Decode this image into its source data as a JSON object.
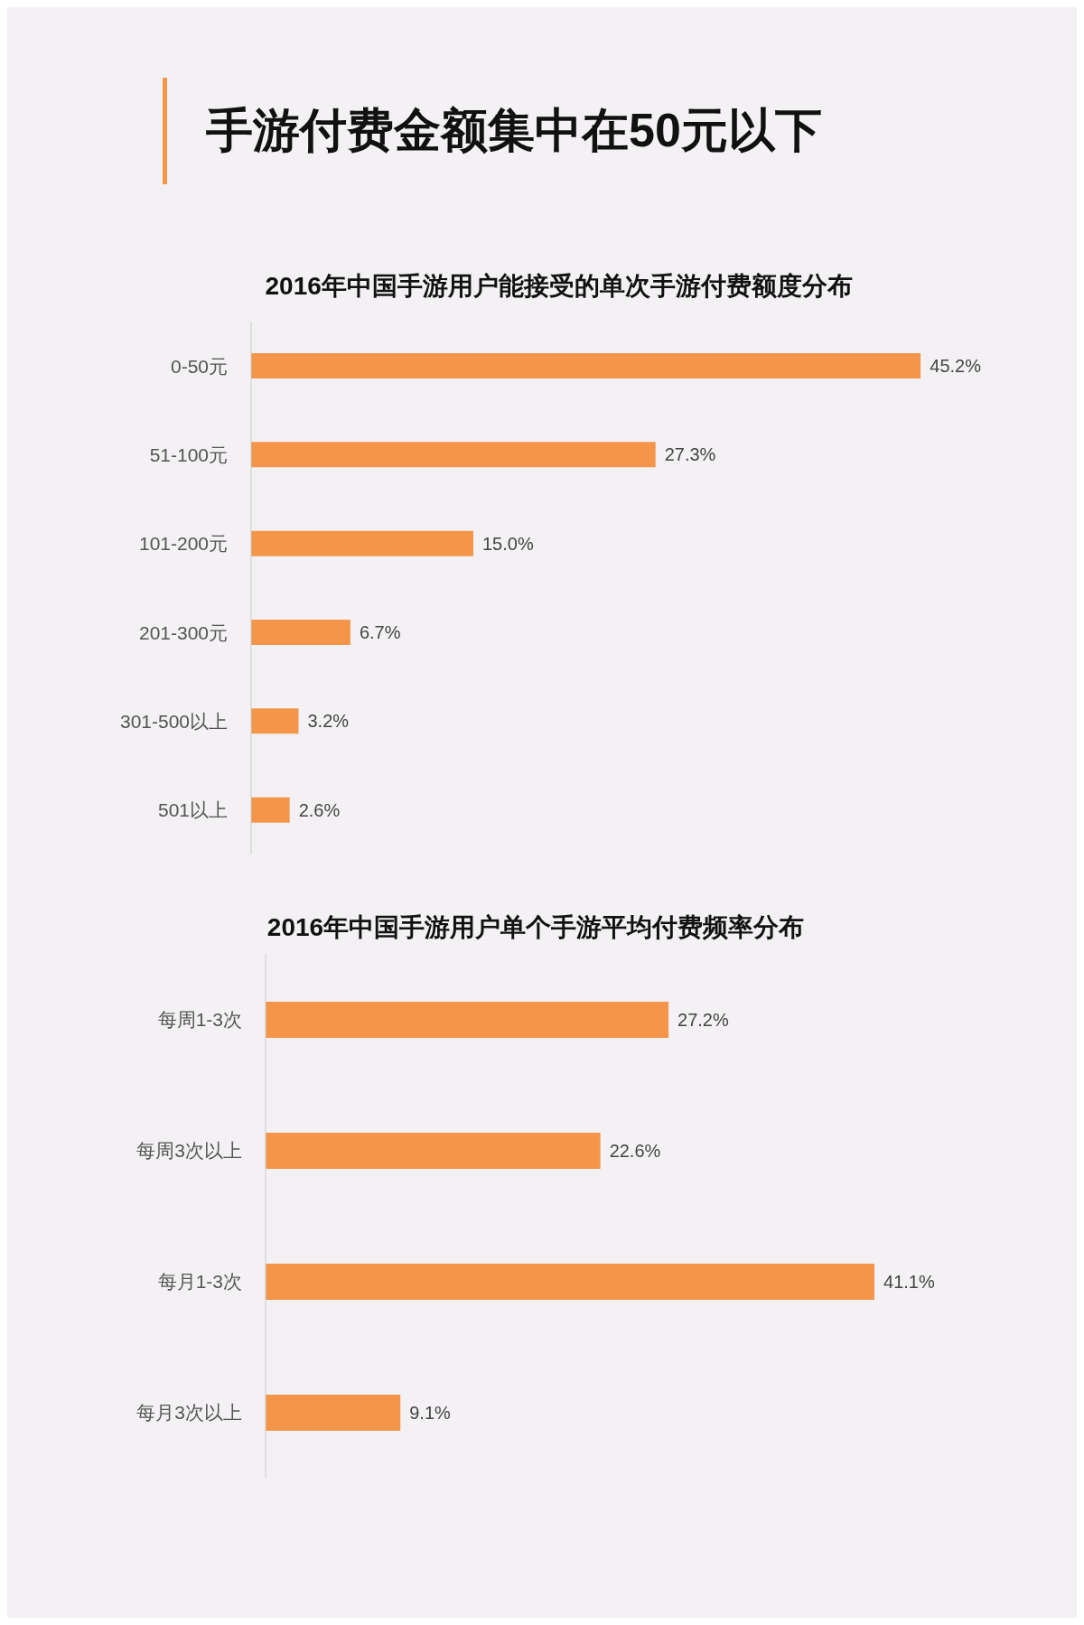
{
  "chart_data": [
    {
      "type": "bar",
      "orientation": "horizontal",
      "title": "手游付费金额集中在50元以下",
      "subtitle": "2016年中国手游用户能接受的单次手游付费额度分布",
      "categories": [
        "0-50元",
        "51-100元",
        "101-200元",
        "201-300元",
        "301-500以上",
        "501以上"
      ],
      "values": [
        45.2,
        27.3,
        15.0,
        6.7,
        3.2,
        2.6
      ],
      "value_labels": [
        "45.2%",
        "27.3%",
        "15.0%",
        "6.7%",
        "3.2%",
        "2.6%"
      ],
      "color": "#f4954a",
      "tick_labels": "y",
      "grid": false,
      "legend": false
    },
    {
      "type": "bar",
      "orientation": "horizontal",
      "title": "2016年中国手游用户单个手游平均付费频率分布",
      "categories": [
        "每周1-3次",
        "每周3次以上",
        "每月1-3次",
        "每月3次以上"
      ],
      "values": [
        27.2,
        22.6,
        41.1,
        9.1
      ],
      "value_labels": [
        "27.2%",
        "22.6%",
        "41.1%",
        "9.1%"
      ],
      "color": "#f4954a",
      "tick_labels": "y",
      "grid": false,
      "legend": false
    }
  ]
}
